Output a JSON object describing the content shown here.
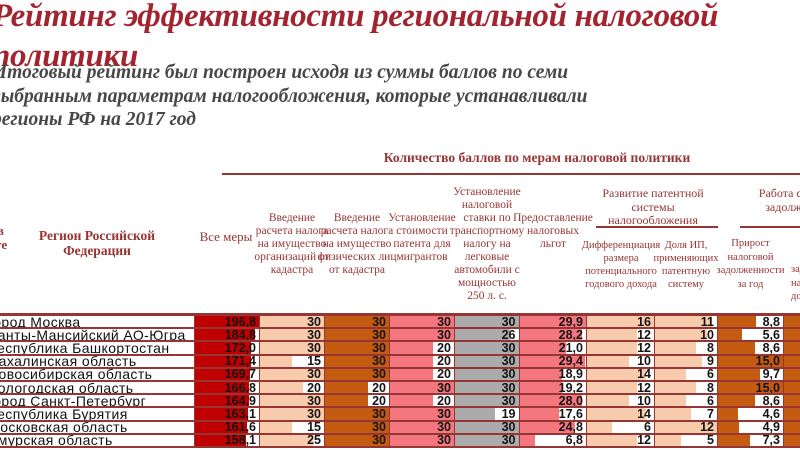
{
  "slide": {
    "title": "Рейтинг эффективности региональной налоговой\nполитики",
    "subtitle": "Итоговый рейтинг был построен исходя из суммы баллов по семи\nвыбранным параметрам налогообложения, которые устанавливали\nрегионы РФ на 2017 год"
  },
  "table": {
    "scores_group_header": "Количество баллов по мерам налоговой политики",
    "headers": {
      "place": "Место в\nрейтинге",
      "region": "Регион Российской\nФедерации",
      "all_measures": "Все меры",
      "property_tax_org": "Введение\nрасчета налога\nна имущество\nорганизаций от\nкадастра",
      "property_tax_individuals": "Введение\nрасчета налога\nна имущество\nфизических лиц\nот кадастра",
      "migrant_patent_cost": "Установление\nстоимости\nпатента для\nмигрантов",
      "transport_tax": "Установление\nналоговой\nставки по\nтранспортному\nналогу на\nлегковые\nавтомобили с\nмощностью\n250 л. с.",
      "tax_benefits": "Предоставление\nналоговых\nльгот",
      "patent_group": "Развитие патентной\nсистемы налогообложения",
      "patent_income_diff": "Дифференциация\nразмера\nпотенциального\nгодового дохода",
      "patent_ip_share": "Доля ИП,\nприменяющих\nпатентную\nсистему",
      "debt_group": "Работа с налоговой\nзадолженностью",
      "debt_growth": "Прирост\nналоговой\nзадолженности\nза год",
      "debt_cut_column_fragment": "задолженности\nналоговых\nдоходах"
    },
    "bar_colors": [
      "#C00000",
      "#F8CBAD",
      "#C55A11",
      "#F4777F",
      "#ABABAB",
      "#F4777F",
      "#F8CBAD",
      "#F8CBAD",
      "#C55A11"
    ],
    "tail_bar_color": "#C55A11",
    "border_color": "#963634",
    "rows": [
      {
        "region": "город Москва",
        "values": [
          "196,8",
          "30",
          "30",
          "30",
          "30",
          "29,9",
          "16",
          "11",
          "8,8"
        ]
      },
      {
        "region": "Ханты-Мансийский АО-Югра",
        "values": [
          "184,8",
          "30",
          "30",
          "30",
          "26",
          "28,2",
          "12",
          "10",
          "5,6"
        ]
      },
      {
        "region": "Республика Башкортостан",
        "values": [
          "172,0",
          "30",
          "30",
          "20",
          "30",
          "21,0",
          "12",
          "8",
          "8,6"
        ]
      },
      {
        "region": "Сахалинская область",
        "values": [
          "171,4",
          "15",
          "30",
          "20",
          "30",
          "29,4",
          "10",
          "9",
          "15,0"
        ]
      },
      {
        "region": "Новосибирская область",
        "values": [
          "169,7",
          "30",
          "30",
          "20",
          "30",
          "18,9",
          "14",
          "6",
          "9,7"
        ]
      },
      {
        "region": "Вологодская область",
        "values": [
          "166,8",
          "20",
          "20",
          "30",
          "30",
          "19,2",
          "12",
          "8",
          "15,0"
        ]
      },
      {
        "region": "город Санкт-Петербург",
        "values": [
          "164,9",
          "30",
          "20",
          "20",
          "30",
          "28,0",
          "10",
          "6",
          "8,6"
        ]
      },
      {
        "region": "Республика Бурятия",
        "values": [
          "163,1",
          "30",
          "30",
          "30",
          "19",
          "17,6",
          "14",
          "7",
          "4,6"
        ]
      },
      {
        "region": "Московская область",
        "values": [
          "161,6",
          "15",
          "30",
          "30",
          "30",
          "24,8",
          "6",
          "12",
          "4,9"
        ]
      },
      {
        "region": "Амурская область",
        "values": [
          "158,1",
          "25",
          "30",
          "30",
          "30",
          "6,8",
          "12",
          "5",
          "7,3"
        ]
      }
    ]
  }
}
